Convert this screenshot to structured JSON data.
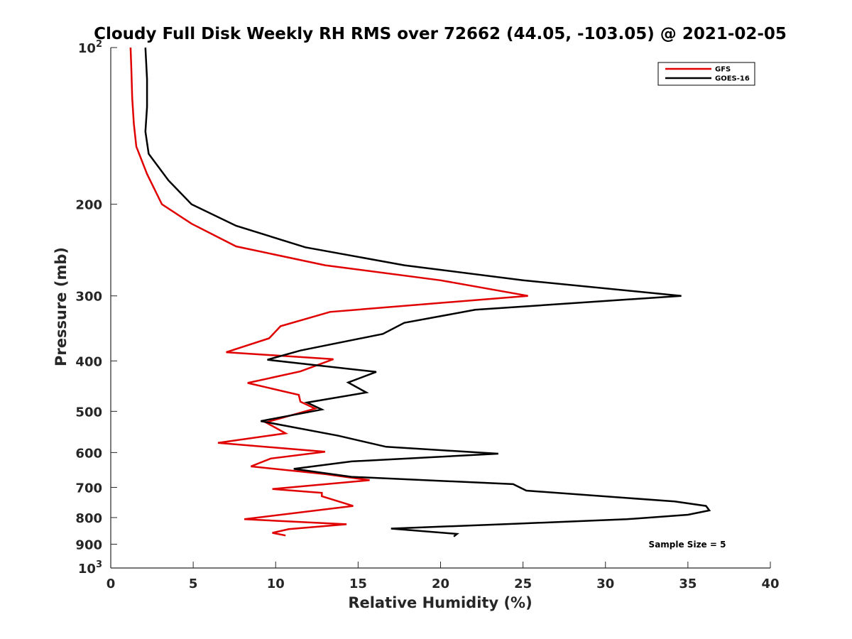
{
  "chart_data": {
    "type": "line",
    "title": "Cloudy Full Disk Weekly RH RMS over 72662 (44.05, -103.05) @ 2021-02-05",
    "xlabel": "Relative Humidity (%)",
    "ylabel": "Pressure (mb)",
    "xlim": [
      0,
      40
    ],
    "ylim": [
      100,
      1000
    ],
    "yscale": "log",
    "y_reversed": true,
    "x_ticks": [
      "0",
      "5",
      "10",
      "15",
      "20",
      "25",
      "30",
      "35",
      "40"
    ],
    "y_ticks": [
      {
        "value": 100,
        "label": "10",
        "sup": "2"
      },
      {
        "value": 200,
        "label": "200",
        "sup": ""
      },
      {
        "value": 300,
        "label": "300",
        "sup": ""
      },
      {
        "value": 400,
        "label": "400",
        "sup": ""
      },
      {
        "value": 500,
        "label": "500",
        "sup": ""
      },
      {
        "value": 600,
        "label": "600",
        "sup": ""
      },
      {
        "value": 700,
        "label": "700",
        "sup": ""
      },
      {
        "value": 800,
        "label": "800",
        "sup": ""
      },
      {
        "value": 900,
        "label": "900",
        "sup": ""
      },
      {
        "value": 1000,
        "label": "10",
        "sup": "3"
      }
    ],
    "grid": false,
    "legend_position": "top-right",
    "annotation": "Sample Size = 5",
    "series": [
      {
        "name": "GFS",
        "color": "#e00000",
        "points": [
          [
            1.2,
            100
          ],
          [
            1.25,
            110
          ],
          [
            1.3,
            125
          ],
          [
            1.4,
            140
          ],
          [
            1.55,
            155
          ],
          [
            2.2,
            175
          ],
          [
            3.1,
            200
          ],
          [
            4.9,
            218
          ],
          [
            7.6,
            241
          ],
          [
            13,
            262
          ],
          [
            20,
            280
          ],
          [
            25.3,
            300
          ],
          [
            13.3,
            322
          ],
          [
            10.3,
            343
          ],
          [
            9.6,
            362
          ],
          [
            7,
            385
          ],
          [
            13.5,
            397
          ],
          [
            11.5,
            419
          ],
          [
            8.3,
            441
          ],
          [
            11.4,
            465
          ],
          [
            11.5,
            479
          ],
          [
            12.4,
            494
          ],
          [
            9.4,
            525
          ],
          [
            10.6,
            551
          ],
          [
            6.5,
            575
          ],
          [
            13,
            598
          ],
          [
            9.7,
            616
          ],
          [
            8.5,
            638
          ],
          [
            13,
            660
          ],
          [
            15.7,
            678
          ],
          [
            9.8,
            705
          ],
          [
            12.8,
            717
          ],
          [
            12.8,
            728
          ],
          [
            14.7,
            760
          ],
          [
            8.1,
            806
          ],
          [
            14.3,
            824
          ],
          [
            10.8,
            842
          ],
          [
            9.8,
            856
          ],
          [
            10.6,
            866
          ]
        ]
      },
      {
        "name": "GOES-16",
        "color": "#000000",
        "points": [
          [
            2.1,
            100
          ],
          [
            2.2,
            115
          ],
          [
            2.2,
            130
          ],
          [
            2.1,
            145
          ],
          [
            2.3,
            160
          ],
          [
            3.5,
            180
          ],
          [
            4.9,
            200
          ],
          [
            7.6,
            220
          ],
          [
            11.8,
            242
          ],
          [
            17.8,
            262
          ],
          [
            25,
            280
          ],
          [
            34.6,
            300
          ],
          [
            22.1,
            319
          ],
          [
            17.8,
            338
          ],
          [
            16.5,
            355
          ],
          [
            11.5,
            382
          ],
          [
            9.5,
            398
          ],
          [
            16.1,
            420
          ],
          [
            14.4,
            440
          ],
          [
            15.5,
            460
          ],
          [
            11.9,
            481
          ],
          [
            12.8,
            496
          ],
          [
            9.1,
            522
          ],
          [
            13.8,
            557
          ],
          [
            16.7,
            585
          ],
          [
            23.5,
            603
          ],
          [
            14.6,
            624
          ],
          [
            11.1,
            645
          ],
          [
            14.6,
            668
          ],
          [
            24.4,
            690
          ],
          [
            25.2,
            710
          ],
          [
            34.2,
            745
          ],
          [
            36.1,
            760
          ],
          [
            36.3,
            775
          ],
          [
            35,
            790
          ],
          [
            31.3,
            806
          ],
          [
            24.6,
            822
          ],
          [
            17,
            840
          ],
          [
            21,
            860
          ],
          [
            20.8,
            870
          ]
        ]
      }
    ]
  }
}
